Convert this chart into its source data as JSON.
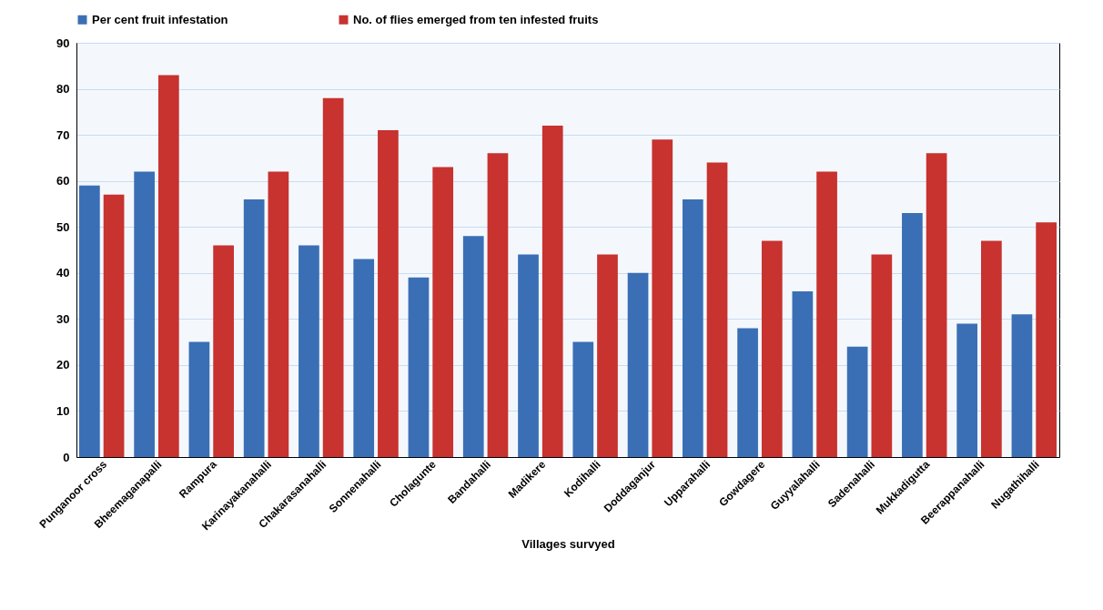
{
  "chart_data": {
    "type": "bar",
    "xlabel": "Villages survyed",
    "categories": [
      "Punganoor cross",
      "Bheemaganapalli",
      "Rampura",
      "Karinayakanahalli",
      "Chakarasanahalli",
      "Sonnenahalli",
      "Cholagunte",
      "Bandahalli",
      "Madikere",
      "Kodihalli",
      "Doddaganjur",
      "Upparahalli",
      "Gowdagere",
      "Guyyalahalli",
      "Sadenahalli",
      "Mukkadigutta",
      "Beerappanahalli",
      "Nugathihalli"
    ],
    "series": [
      {
        "name": "Per cent fruit infestation",
        "color": "#3a6fb5",
        "values": [
          59,
          62,
          25,
          56,
          46,
          43,
          39,
          48,
          44,
          25,
          40,
          56,
          28,
          36,
          24,
          53,
          29,
          31
        ]
      },
      {
        "name": "No. of flies emerged from ten infested fruits",
        "color": "#c8322f",
        "values": [
          57,
          83,
          46,
          62,
          78,
          71,
          63,
          66,
          72,
          44,
          69,
          64,
          47,
          62,
          44,
          66,
          47,
          51
        ]
      }
    ],
    "ylim": [
      0,
      90
    ],
    "yticks": [
      0,
      10,
      20,
      30,
      40,
      50,
      60,
      70,
      80,
      90
    ],
    "grid": "y",
    "legend": "top"
  }
}
